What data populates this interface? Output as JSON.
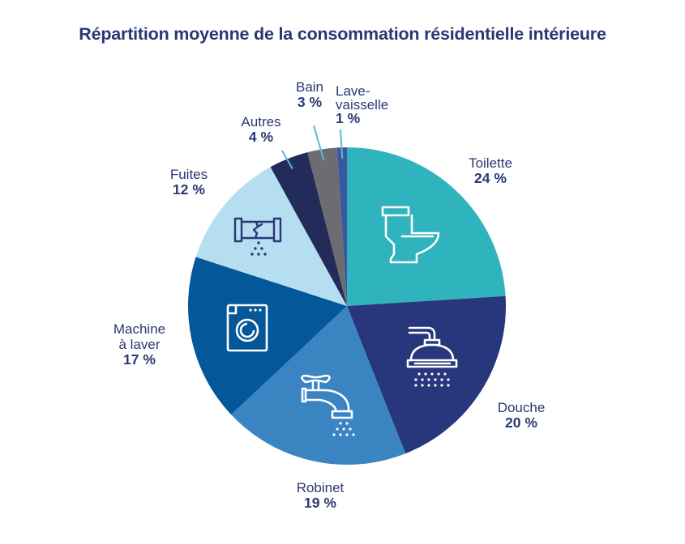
{
  "chart_data": {
    "type": "pie",
    "title": "Répartition moyenne de la consommation résidentielle intérieure",
    "start": "12 o'clock",
    "direction": "clockwise",
    "slices": [
      {
        "key": "toilette",
        "label": "Toilette",
        "value": 24,
        "pct_label": "24 %",
        "color": "#2fb3bc",
        "icon": "toilet-icon"
      },
      {
        "key": "douche",
        "label": "Douche",
        "value": 20,
        "pct_label": "20 %",
        "color": "#28367c",
        "icon": "shower-icon"
      },
      {
        "key": "robinet",
        "label": "Robinet",
        "value": 19,
        "pct_label": "19 %",
        "color": "#3a84c2",
        "icon": "faucet-icon"
      },
      {
        "key": "machine",
        "label": "Machine à laver",
        "label_lines": [
          "Machine",
          "à laver"
        ],
        "value": 17,
        "pct_label": "17 %",
        "color": "#045799",
        "icon": "washing-machine-icon"
      },
      {
        "key": "fuites",
        "label": "Fuites",
        "value": 12,
        "pct_label": "12 %",
        "color": "#b5dff0",
        "icon": "leaking-pipe-icon"
      },
      {
        "key": "autres",
        "label": "Autres",
        "value": 4,
        "pct_label": "4 %",
        "color": "#232b5a",
        "icon": null
      },
      {
        "key": "bain",
        "label": "Bain",
        "value": 3,
        "pct_label": "3 %",
        "color": "#6d6c71",
        "icon": null
      },
      {
        "key": "lave",
        "label": "Lave-vaisselle",
        "label_lines": [
          "Lave-",
          "vaisselle"
        ],
        "value": 1,
        "pct_label": "1 %",
        "color": "#3a589e",
        "icon": null
      }
    ],
    "leader_line_color": "#5bb8d9",
    "text_color": "#2b3775",
    "icon_color_light": "#ffffff",
    "icon_color_dark": "#2b3775"
  }
}
